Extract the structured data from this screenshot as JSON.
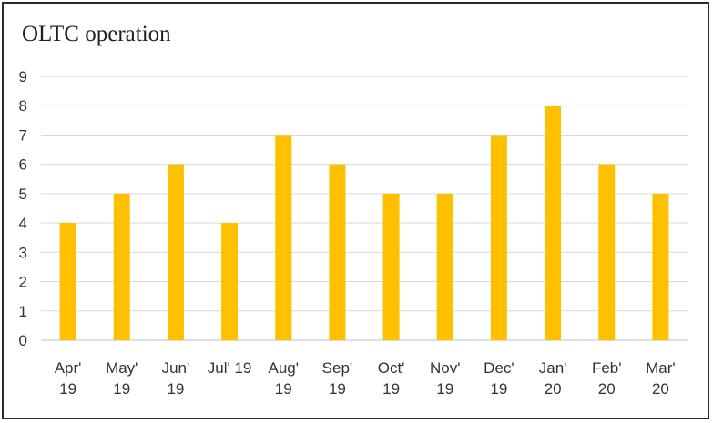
{
  "chart_data": {
    "type": "bar",
    "title": "OLTC operation",
    "categories": [
      [
        "Apr'",
        "19"
      ],
      [
        "May'",
        "19"
      ],
      [
        "Jun'",
        "19"
      ],
      [
        "Jul' 19",
        ""
      ],
      [
        "Aug'",
        "19"
      ],
      [
        "Sep'",
        "19"
      ],
      [
        "Oct'",
        "19"
      ],
      [
        "Nov'",
        "19"
      ],
      [
        "Dec'",
        "19"
      ],
      [
        "Jan'",
        "20"
      ],
      [
        "Feb'",
        "20"
      ],
      [
        "Mar'",
        "20"
      ]
    ],
    "values": [
      4,
      5,
      6,
      4,
      7,
      6,
      5,
      5,
      7,
      8,
      6,
      5
    ],
    "ylim": [
      0,
      9
    ],
    "yticks": [
      0,
      1,
      2,
      3,
      4,
      5,
      6,
      7,
      8,
      9
    ],
    "grid": true,
    "colors": {
      "bar": "#FFC000",
      "grid": "#d9d9d9",
      "axis": "#bfbfbf"
    }
  }
}
